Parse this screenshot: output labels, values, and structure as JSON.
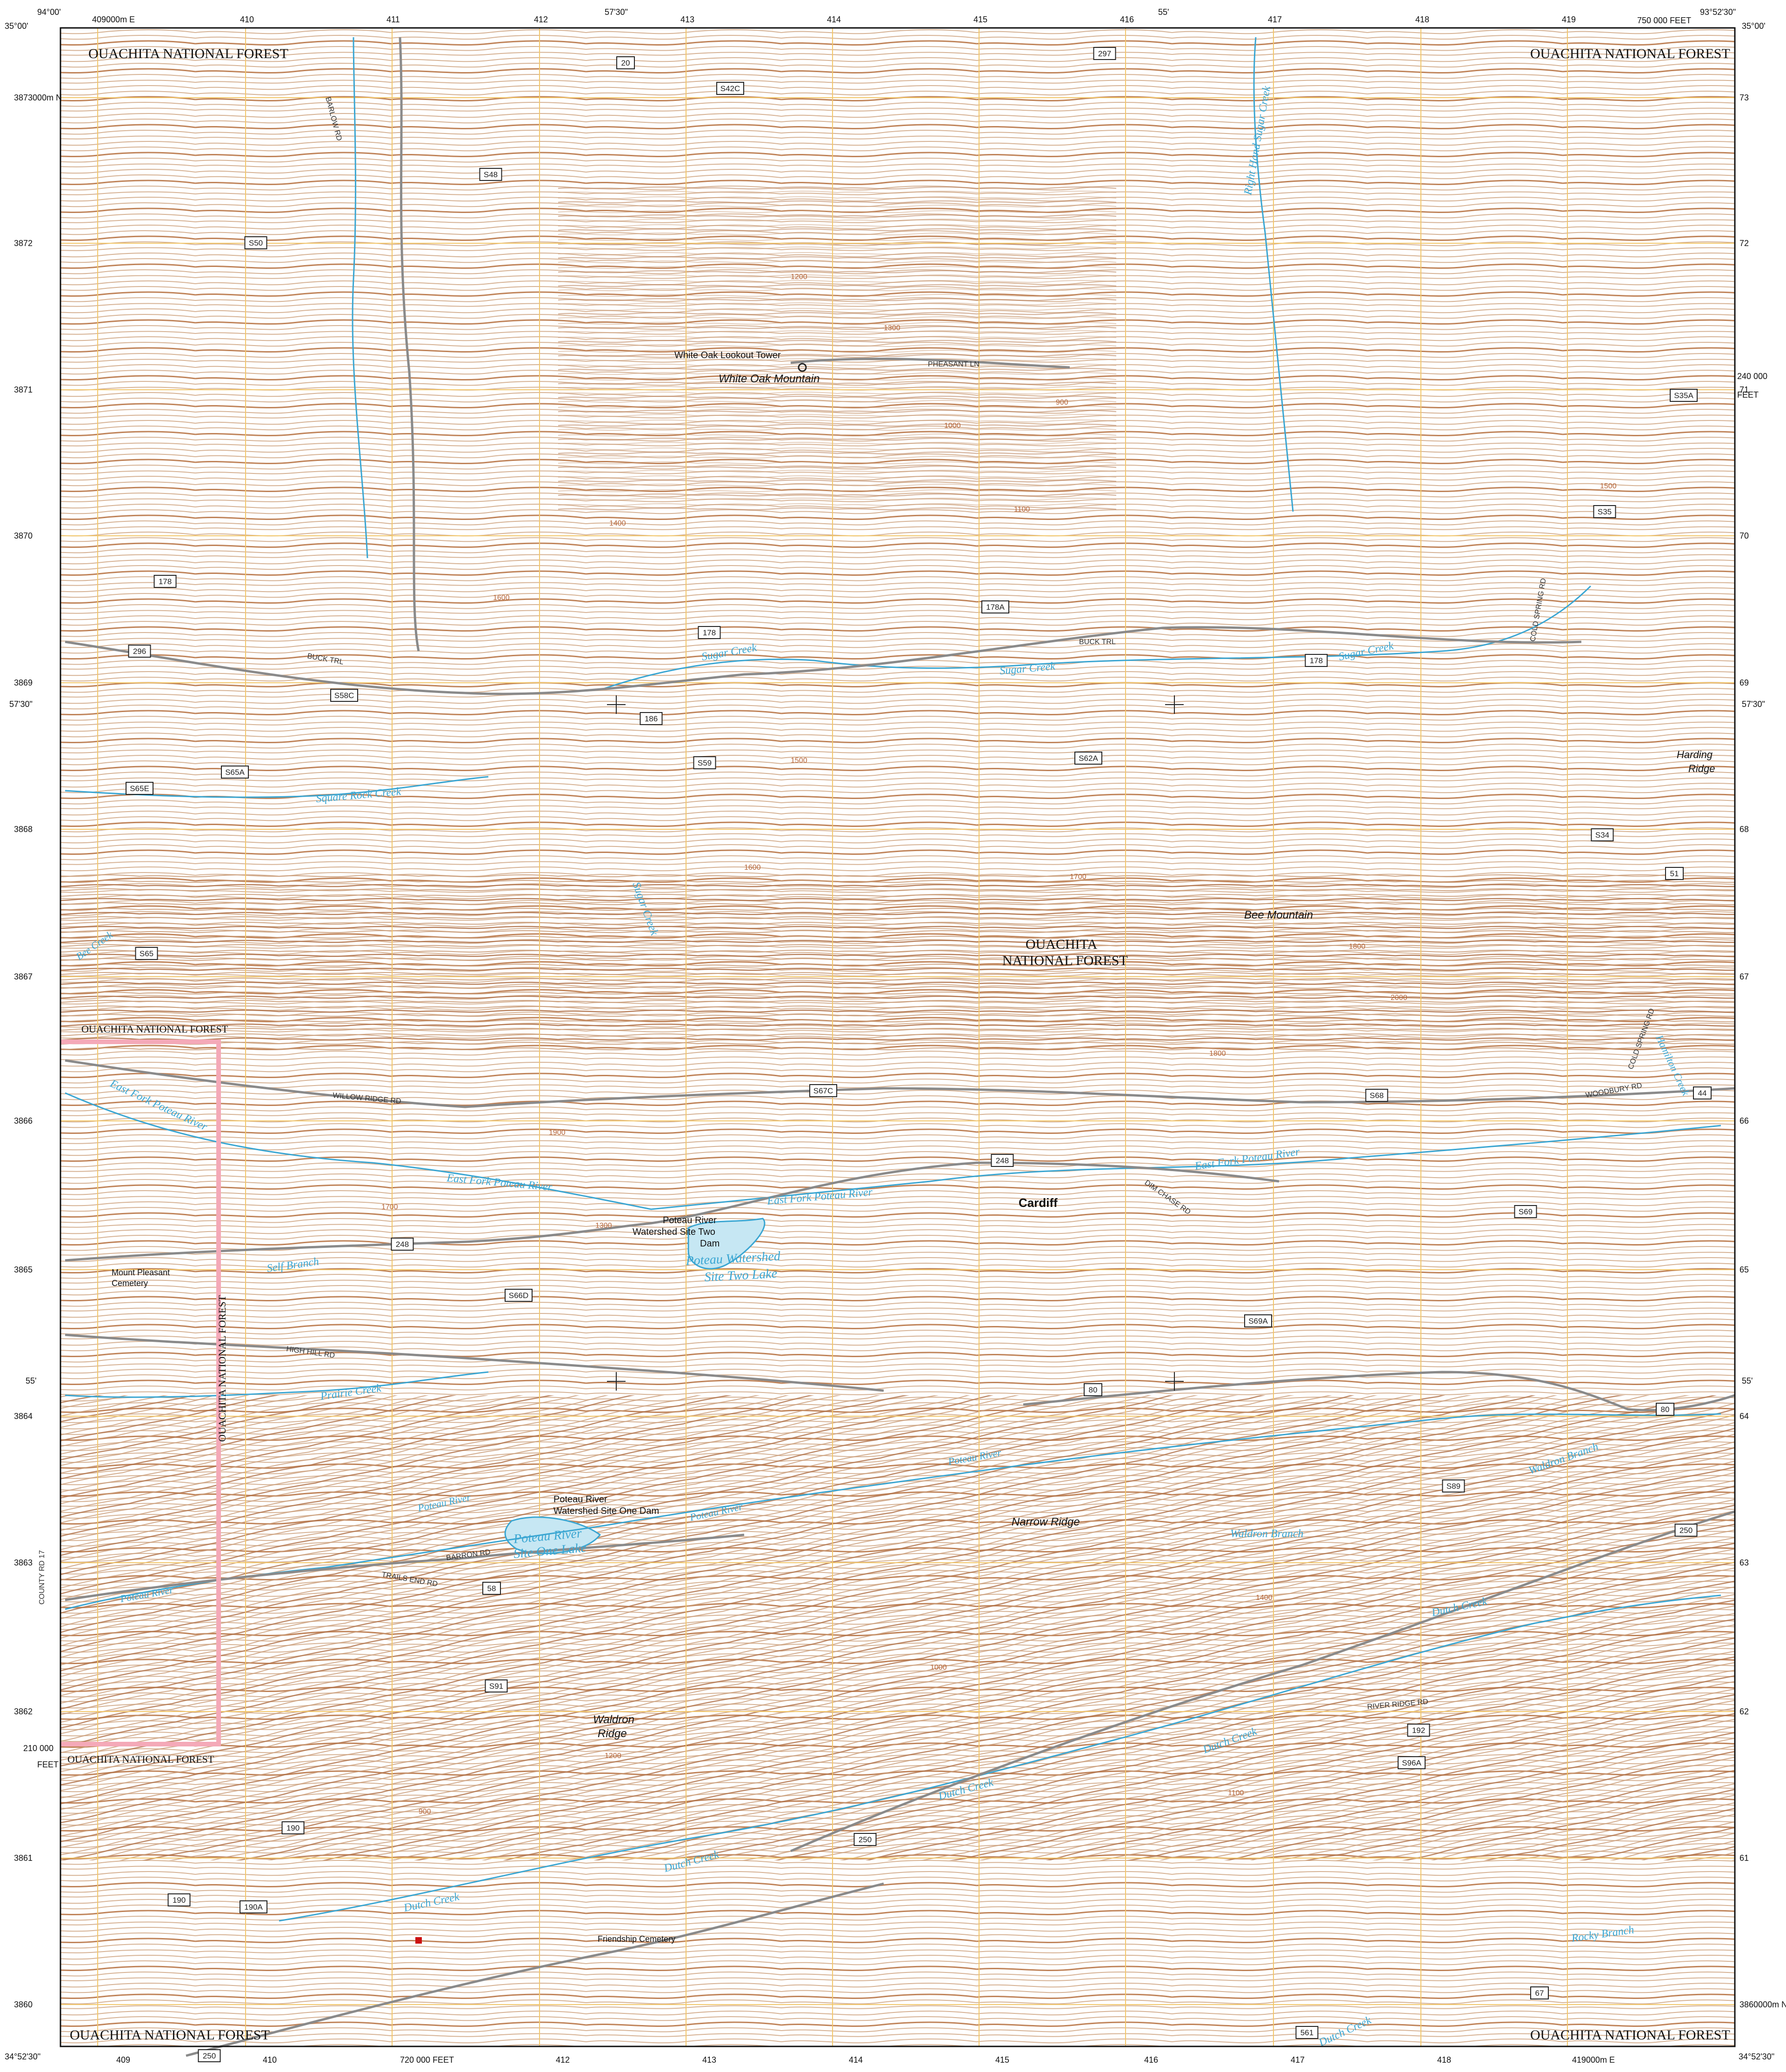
{
  "colors": {
    "contour": "#c89a76",
    "contour_index": "#b0724a",
    "grid": "#f2c76b",
    "water": "#3aa6d2",
    "road": "#8a8a8a",
    "boundary": "#f4a9b8",
    "background": "#ffffff"
  },
  "corners": {
    "top_left_lon": "94°00'",
    "top_left_lat": "35°00'",
    "top_right_lon": "93°52'30\"",
    "top_right_lat": "35°00'",
    "bottom_left_lat": "34°52'30\"",
    "bottom_right_lat": "34°52'30\"",
    "top_mid_lon": "57'30\"",
    "top_mid2_lon": "55'",
    "left_mid_lat": "57'30\"",
    "right_mid_lat": "57'30\"",
    "left_low_lat": "55'",
    "right_low_lat": "55'"
  },
  "grid_labels": {
    "top": [
      "409000m E",
      "410",
      "411",
      "412",
      "413",
      "414",
      "415",
      "416",
      "417",
      "418",
      "419"
    ],
    "bottom": [
      "409",
      "410",
      "412",
      "413",
      "414",
      "415",
      "416",
      "417",
      "418",
      "419000m E"
    ],
    "left": [
      "3873000m N",
      "3872",
      "3871",
      "3870",
      "3869",
      "3868",
      "3867",
      "3866",
      "3865",
      "3864",
      "3863",
      "3862",
      "3861",
      "3860"
    ],
    "right": [
      "73",
      "72",
      "71",
      "70",
      "69",
      "68",
      "67",
      "66",
      "65",
      "64",
      "63",
      "62",
      "61",
      "3860000m N"
    ],
    "feet_right_top": "750 000 FEET",
    "feet_right_mid": "240 000",
    "feet_right_mid_unit": "FEET",
    "feet_left_low": "210 000",
    "feet_left_low_unit": "FEET",
    "feet_bottom": "720 000 FEET"
  },
  "place_labels": {
    "forest_tl": "OUACHITA NATIONAL FOREST",
    "forest_tr": "OUACHITA NATIONAL FOREST",
    "forest_center_1": "OUACHITA",
    "forest_center_2": "NATIONAL FOREST",
    "forest_left": "OUACHITA NATIONAL FOREST",
    "forest_vertical": "OUACHITA NATIONAL FOREST",
    "forest_left_low": "OUACHITA NATIONAL FOREST",
    "forest_bl": "OUACHITA NATIONAL FOREST",
    "forest_br": "OUACHITA NATIONAL FOREST",
    "tower": "White Oak Lookout Tower",
    "mountain": "White Oak Mountain",
    "harding_1": "Harding",
    "harding_2": "Ridge",
    "bee": "Bee Mountain",
    "cardiff": "Cardiff",
    "dam2_1": "Poteau River",
    "dam2_2": "Watershed Site Two",
    "dam2_3": "Dam",
    "cemetery_1": "Mount Pleasant",
    "cemetery_2": "Cemetery",
    "dam1_1": "Poteau River",
    "dam1_2": "Watershed Site One Dam",
    "narrow": "Narrow Ridge",
    "waldron_1": "Waldron",
    "waldron_2": "Ridge",
    "friendship": "Friendship Cemetery"
  },
  "water_labels": {
    "sugar1": "Sugar Creek",
    "sugar2": "Sugar Creek",
    "sugar3": "Sugar Creek",
    "sugar4": "Sugar Creek",
    "square_rock": "Square Rock Creek",
    "bee_creek": "Bee Creek",
    "efp1": "East Fork Poteau River",
    "efp2": "East Fork Poteau River",
    "efp3": "East Fork Poteau River",
    "efp4": "East Fork Poteau River",
    "lake2_1": "Poteau Watershed",
    "lake2_2": "Site Two Lake",
    "self_branch": "Self Branch",
    "prairie": "Prairie Creek",
    "poteau1": "Poteau River",
    "poteau2": "Poteau River",
    "poteau3": "Poteau River",
    "poteau4": "Poteau River",
    "lake1_1": "Poteau River",
    "lake1_2": "Site One Lake",
    "waldron_br1": "Waldron Branch",
    "waldron_br2": "Waldron Branch",
    "dutch1": "Dutch Creek",
    "dutch2": "Dutch Creek",
    "dutch3": "Dutch Creek",
    "dutch4": "Dutch Creek",
    "dutch5": "Dutch Creek",
    "rocky": "Rocky Branch",
    "dutch6": "Dutch Creek",
    "high_hill": "Right Hand Sugar Creek",
    "gum": "Hamilton Creek"
  },
  "road_labels": {
    "buck1": "BUCK TRL",
    "buck2": "BUCK TRL",
    "pheasant": "PHEASANT LN",
    "willow": "WILLOW RIDGE RD",
    "high_hill": "HIGH HILL RD",
    "barron": "BARRON RD",
    "trails_end": "TRAILS END RD",
    "county17": "COUNTY RD 17",
    "river_ridge": "RIVER RIDGE RD",
    "woodbury": "WOODBURY RD",
    "cold_spring": "COLD SPRING RD",
    "cold_spring2": "COLD SPRING RD",
    "dim_chase": "DIM CHASE RD",
    "barlow": "BARLOW RD"
  },
  "shields": [
    "20",
    "297",
    "S42C",
    "S48",
    "S50",
    "178",
    "296",
    "178",
    "178A",
    "178",
    "186",
    "S59",
    "S62A",
    "S58C",
    "S65A",
    "S65E",
    "S35A",
    "S35",
    "S34",
    "51",
    "S65",
    "S67C",
    "248",
    "S68",
    "44",
    "S69",
    "248",
    "S66D",
    "S69A",
    "80",
    "80",
    "S89",
    "250",
    "58",
    "S91",
    "192",
    "S96A",
    "190",
    "250",
    "190",
    "190A",
    "250",
    "561",
    "67"
  ],
  "contour_values": [
    "1300",
    "1400",
    "1200",
    "1000",
    "900",
    "1100",
    "1500",
    "1600",
    "1700",
    "1800",
    "2000",
    "1900"
  ]
}
